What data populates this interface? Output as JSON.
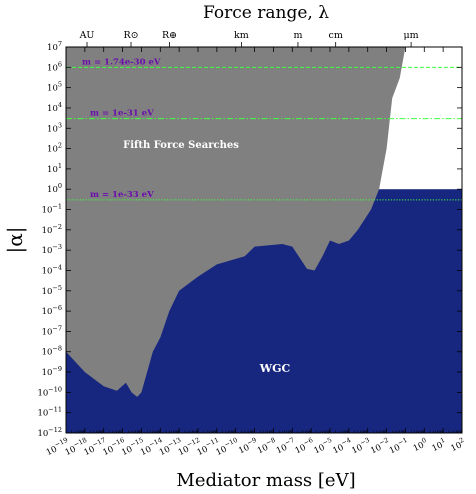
{
  "chart_data": {
    "type": "area",
    "title": "Force range, λ",
    "xlabel": "Mediator mass [eV]",
    "ylabel": "|α|",
    "x_scale": "log",
    "y_scale": "log",
    "xlim": [
      1e-19,
      100
    ],
    "ylim": [
      1e-12,
      10000000.0
    ],
    "x_ticks": [
      "10^-19",
      "10^-18",
      "10^-17",
      "10^-16",
      "10^-15",
      "10^-14",
      "10^-13",
      "10^-12",
      "10^-11",
      "10^-10",
      "10^-9",
      "10^-8",
      "10^-7",
      "10^-6",
      "10^-5",
      "10^-4",
      "10^-3",
      "10^-2",
      "10^-1",
      "10^0",
      "10^1",
      "10^2"
    ],
    "y_ticks": [
      "10^-12",
      "10^-11",
      "10^-10",
      "10^-9",
      "10^-8",
      "10^-7",
      "10^-6",
      "10^-5",
      "10^-4",
      "10^-3",
      "10^-2",
      "10^-1",
      "10^0",
      "10^1",
      "10^2",
      "10^3",
      "10^4",
      "10^5",
      "10^6",
      "10^7"
    ],
    "top_axis_ticks": [
      {
        "label": "AU",
        "mass": 1.3e-18
      },
      {
        "label": "R⊙",
        "mass": 2.8e-16
      },
      {
        "label": "R⊕",
        "mass": 3.1e-14
      },
      {
        "label": "km",
        "mass": 2e-10
      },
      {
        "label": "m",
        "mass": 2e-07
      },
      {
        "label": "cm",
        "mass": 2e-05
      },
      {
        "label": "μm",
        "mass": 0.2
      }
    ],
    "wgc_region": {
      "label": "WGC",
      "color": "#17277f",
      "upper_alpha": 1
    },
    "fifth_force_region": {
      "label": "Fifth Force Searches",
      "color": "#808080",
      "boundary": [
        {
          "x": 1e-19,
          "y": 1e-08
        },
        {
          "x": 1e-18,
          "y": 1e-09
        },
        {
          "x": 1e-17,
          "y": 2e-10
        },
        {
          "x": 5e-17,
          "y": 1.2e-10
        },
        {
          "x": 1.5e-16,
          "y": 3e-10
        },
        {
          "x": 3e-16,
          "y": 1e-10
        },
        {
          "x": 6e-16,
          "y": 6e-11
        },
        {
          "x": 1e-15,
          "y": 1e-10
        },
        {
          "x": 2e-15,
          "y": 1e-09
        },
        {
          "x": 4e-15,
          "y": 1e-08
        },
        {
          "x": 1e-14,
          "y": 5e-08
        },
        {
          "x": 3e-14,
          "y": 1e-06
        },
        {
          "x": 1e-13,
          "y": 1e-05
        },
        {
          "x": 1e-12,
          "y": 5e-05
        },
        {
          "x": 1e-11,
          "y": 0.0002
        },
        {
          "x": 3e-10,
          "y": 0.0005
        },
        {
          "x": 1e-09,
          "y": 0.0015
        },
        {
          "x": 3e-08,
          "y": 0.002
        },
        {
          "x": 1e-07,
          "y": 0.0015
        },
        {
          "x": 6e-07,
          "y": 0.00012
        },
        {
          "x": 1.5e-06,
          "y": 0.0001
        },
        {
          "x": 4e-06,
          "y": 0.0005
        },
        {
          "x": 1e-05,
          "y": 0.003
        },
        {
          "x": 3e-05,
          "y": 0.002
        },
        {
          "x": 0.0001,
          "y": 0.003
        },
        {
          "x": 0.0003,
          "y": 0.01
        },
        {
          "x": 0.0015,
          "y": 0.1
        },
        {
          "x": 0.004,
          "y": 1
        },
        {
          "x": 0.01,
          "y": 100.0
        },
        {
          "x": 0.02,
          "y": 30000.0
        },
        {
          "x": 0.05,
          "y": 300000.0
        },
        {
          "x": 0.1,
          "y": 10000000.0
        }
      ]
    },
    "series": [
      {
        "name": "m = 1.74e-30 eV",
        "alpha": 1000000.0,
        "style": "dashed",
        "color": "#40ff40"
      },
      {
        "name": "m = 1e-31 eV",
        "alpha": 3000.0,
        "style": "dashdot",
        "color": "#40ff40"
      },
      {
        "name": "m = 1e-33 eV",
        "alpha": 0.3,
        "style": "dotted",
        "color": "#40ff40"
      }
    ],
    "annotation_color": "#6a0dad",
    "grid": false
  }
}
